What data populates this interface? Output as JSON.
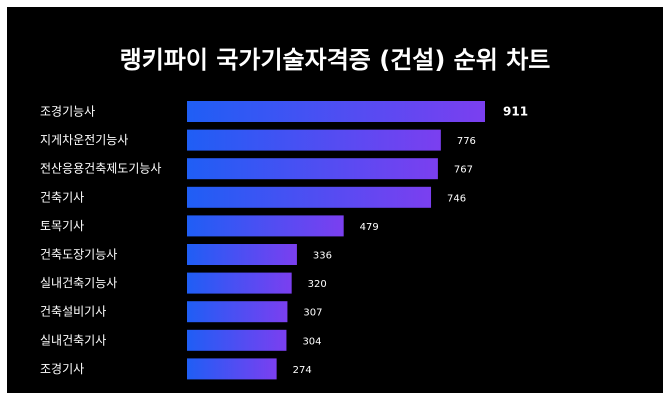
{
  "chart_data": {
    "type": "bar",
    "orientation": "horizontal",
    "title": "랭키파이 국가기술자격증 (건설) 순위 차트",
    "categories": [
      "조경기능사",
      "지게차운전기능사",
      "전산응용건축제도기능사",
      "건축기사",
      "토목기사",
      "건축도장기능사",
      "실내건축기능사",
      "건축설비기사",
      "실내건축기사",
      "조경기사"
    ],
    "values": [
      911,
      776,
      767,
      746,
      479,
      336,
      320,
      307,
      304,
      274
    ],
    "xlim": [
      0,
      911
    ],
    "grid": false,
    "legend": "none",
    "colors": {
      "background": "#000000",
      "bar_start": "#1f5ef5",
      "bar_end": "#7b3ff0",
      "text": "#ffffff"
    }
  }
}
